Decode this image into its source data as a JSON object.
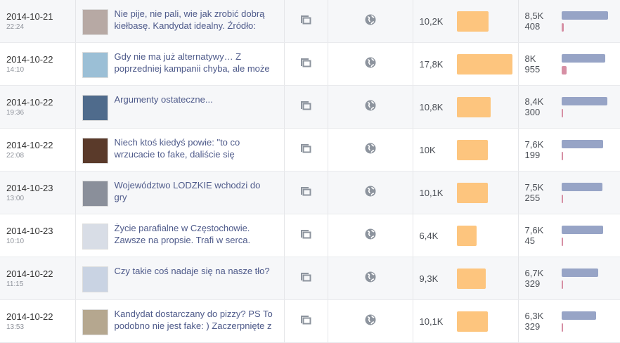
{
  "colors": {
    "reach": "#fdc57e",
    "engagement_primary": "#97a4c6",
    "engagement_secondary": "#d68fa4",
    "link": "#4e5a8a"
  },
  "icons": {
    "type": "multiple-photos-icon",
    "targeting": "globe-icon"
  },
  "rows": [
    {
      "date": "2014-10-21",
      "time": "22:24",
      "text": "Nie pije, nie pali, wie jak zrobić dobrą kiełbasę. Kandydat idealny. Źródło:",
      "reach": "10,2K",
      "reach_value": 10.2,
      "eng1": "8,5K",
      "eng1_value": 8.5,
      "eng2": "408",
      "eng2_value": 408,
      "thumb": "#b7a9a4"
    },
    {
      "date": "2014-10-22",
      "time": "14:10",
      "text": "Gdy nie ma już alternatywy… Z poprzedniej kampanii chyba, ale może",
      "reach": "17,8K",
      "reach_value": 17.8,
      "eng1": "8K",
      "eng1_value": 8.0,
      "eng2": "955",
      "eng2_value": 955,
      "thumb": "#9bbfd6"
    },
    {
      "date": "2014-10-22",
      "time": "19:36",
      "text": "Argumenty ostateczne...",
      "reach": "10,8K",
      "reach_value": 10.8,
      "eng1": "8,4K",
      "eng1_value": 8.4,
      "eng2": "300",
      "eng2_value": 300,
      "thumb": "#4f6b8c"
    },
    {
      "date": "2014-10-22",
      "time": "22:08",
      "text": "Niech ktoś kiedyś powie: \"to co wrzucacie to fake, daliście się",
      "reach": "10K",
      "reach_value": 10.0,
      "eng1": "7,6K",
      "eng1_value": 7.6,
      "eng2": "199",
      "eng2_value": 199,
      "thumb": "#5a3a2a"
    },
    {
      "date": "2014-10-23",
      "time": "13:00",
      "text": "Województwo LODZKIE wchodzi do gry",
      "reach": "10,1K",
      "reach_value": 10.1,
      "eng1": "7,5K",
      "eng1_value": 7.5,
      "eng2": "255",
      "eng2_value": 255,
      "thumb": "#8a8f9a"
    },
    {
      "date": "2014-10-23",
      "time": "10:10",
      "text": "Życie parafialne w Częstochowie. Zawsze na propsie. Trafi w serca.",
      "reach": "6,4K",
      "reach_value": 6.4,
      "eng1": "7,6K",
      "eng1_value": 7.6,
      "eng2": "45",
      "eng2_value": 45,
      "thumb": "#d8dde6"
    },
    {
      "date": "2014-10-22",
      "time": "11:15",
      "text": "Czy takie coś nadaje się na nasze tło?",
      "reach": "9,3K",
      "reach_value": 9.3,
      "eng1": "6,7K",
      "eng1_value": 6.7,
      "eng2": "329",
      "eng2_value": 329,
      "thumb": "#c9d3e3"
    },
    {
      "date": "2014-10-22",
      "time": "13:53",
      "text": "Kandydat dostarczany do pizzy? PS To podobno nie jest fake: ) Zaczerpnięte z",
      "reach": "10,1K",
      "reach_value": 10.1,
      "eng1": "6,3K",
      "eng1_value": 6.3,
      "eng2": "329",
      "eng2_value": 329,
      "thumb": "#b5a78f"
    }
  ]
}
